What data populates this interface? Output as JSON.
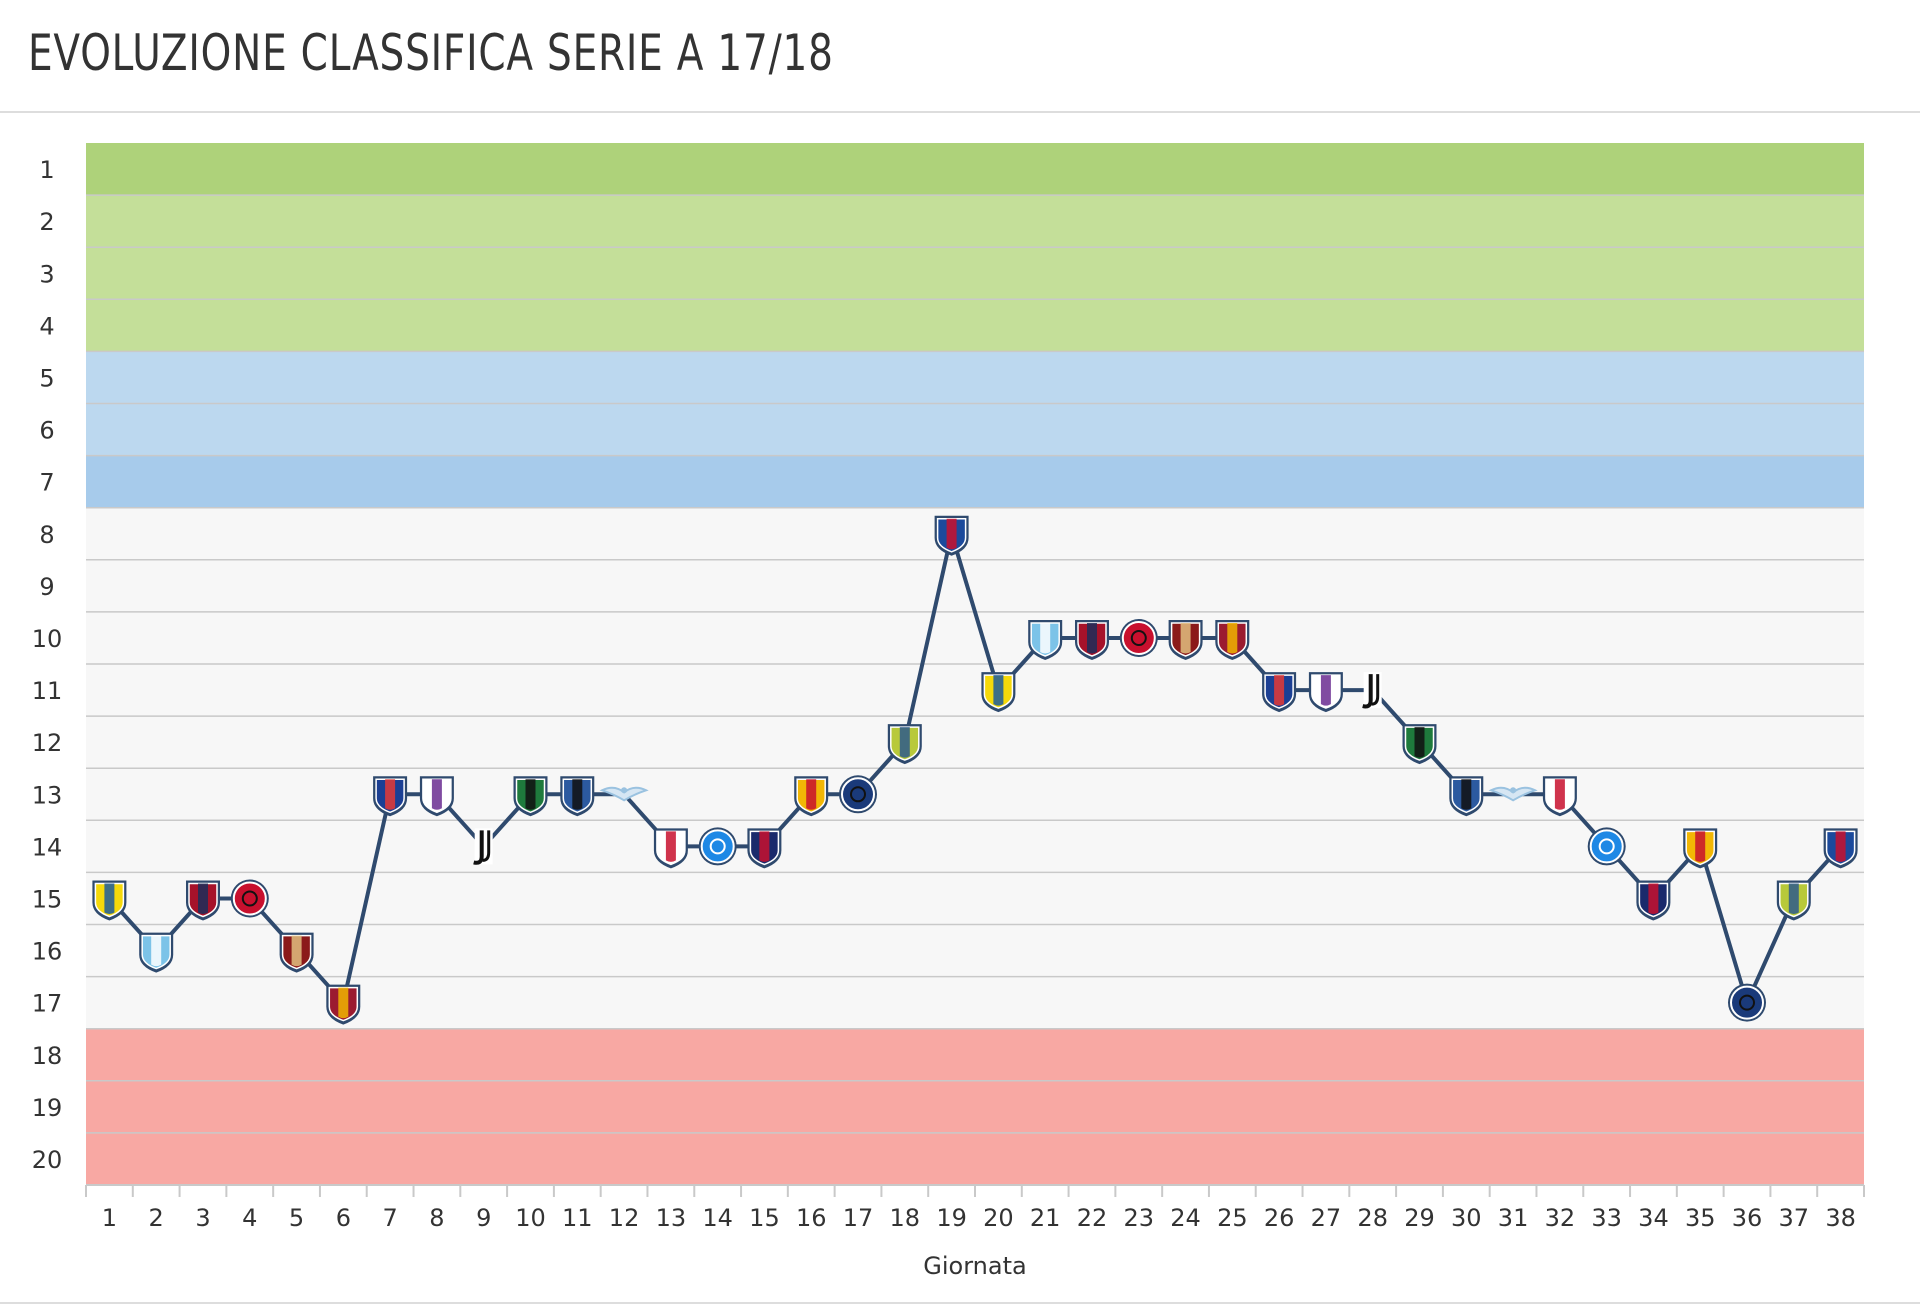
{
  "page": {
    "title": "EVOLUZIONE CLASSIFICA SERIE A 17/18"
  },
  "chart_data": {
    "type": "line",
    "title": "EVOLUZIONE CLASSIFICA SERIE A 17/18",
    "xlabel": "Giornata",
    "ylabel": "",
    "x": [
      1,
      2,
      3,
      4,
      5,
      6,
      7,
      8,
      9,
      10,
      11,
      12,
      13,
      14,
      15,
      16,
      17,
      18,
      19,
      20,
      21,
      22,
      23,
      24,
      25,
      26,
      27,
      28,
      29,
      30,
      31,
      32,
      33,
      34,
      35,
      36,
      37,
      38
    ],
    "ylim": [
      20,
      1
    ],
    "y_ticks": [
      1,
      2,
      3,
      4,
      5,
      6,
      7,
      8,
      9,
      10,
      11,
      12,
      13,
      14,
      15,
      16,
      17,
      18,
      19,
      20
    ],
    "zones": [
      {
        "from": 1,
        "to": 1,
        "color": "#aed27a"
      },
      {
        "from": 2,
        "to": 4,
        "color": "#c4df99"
      },
      {
        "from": 5,
        "to": 6,
        "color": "#bcd8ef"
      },
      {
        "from": 7,
        "to": 7,
        "color": "#a7cbeb"
      },
      {
        "from": 8,
        "to": 17,
        "color": "#f7f7f7"
      },
      {
        "from": 18,
        "to": 20,
        "color": "#f8a8a3"
      }
    ],
    "line_color": "#2f4a6e",
    "series": [
      {
        "values": [
          15,
          16,
          15,
          15,
          16,
          17,
          13,
          13,
          14,
          13,
          13,
          13,
          14,
          14,
          14,
          13,
          13,
          12,
          8,
          11,
          10,
          10,
          10,
          10,
          10,
          11,
          11,
          11,
          12,
          13,
          13,
          13,
          14,
          15,
          14,
          17,
          15,
          14
        ]
      }
    ],
    "opponent_markers": [
      {
        "shape": "shield",
        "fill": "#f5d90a",
        "accent": "#1c5a9c"
      },
      {
        "shape": "shield",
        "fill": "#7cc3e8",
        "accent": "#ffffff"
      },
      {
        "shape": "shield",
        "fill": "#a6122a",
        "accent": "#1c2e5a"
      },
      {
        "shape": "circle",
        "fill": "#c8102e",
        "accent": "#111111"
      },
      {
        "shape": "shield",
        "fill": "#8b1a1a",
        "accent": "#e0c080"
      },
      {
        "shape": "shield",
        "fill": "#9b1b30",
        "accent": "#f0b400"
      },
      {
        "shape": "shield",
        "fill": "#1b3f94",
        "accent": "#e53935"
      },
      {
        "shape": "shield",
        "fill": "#ffffff",
        "accent": "#6a2c91"
      },
      {
        "shape": "juve",
        "fill": "#ffffff",
        "accent": "#111111"
      },
      {
        "shape": "shield",
        "fill": "#1e7a3c",
        "accent": "#111111"
      },
      {
        "shape": "shield",
        "fill": "#2c5aa0",
        "accent": "#111111"
      },
      {
        "shape": "eagle",
        "fill": "#d6e6f3",
        "accent": "#9ac2e0"
      },
      {
        "shape": "shield",
        "fill": "#ffffff",
        "accent": "#c8102e"
      },
      {
        "shape": "circle",
        "fill": "#1e88e5",
        "accent": "#ffffff"
      },
      {
        "shape": "shield",
        "fill": "#1a2a6c",
        "accent": "#c8102e"
      },
      {
        "shape": "shield",
        "fill": "#f2b705",
        "accent": "#c8102e"
      },
      {
        "shape": "circle",
        "fill": "#1a3a7a",
        "accent": "#111111"
      },
      {
        "shape": "shield",
        "fill": "#b8c93a",
        "accent": "#2d5a8c"
      },
      {
        "shape": "shield",
        "fill": "#1b4a9c",
        "accent": "#c8102e"
      },
      {
        "shape": "shield",
        "fill": "#f5d90a",
        "accent": "#1c5a9c"
      },
      {
        "shape": "shield",
        "fill": "#7cc3e8",
        "accent": "#ffffff"
      },
      {
        "shape": "shield",
        "fill": "#a6122a",
        "accent": "#1c2e5a"
      },
      {
        "shape": "circle",
        "fill": "#c8102e",
        "accent": "#111111"
      },
      {
        "shape": "shield",
        "fill": "#8b1a1a",
        "accent": "#e0c080"
      },
      {
        "shape": "shield",
        "fill": "#9b1b30",
        "accent": "#f0b400"
      },
      {
        "shape": "shield",
        "fill": "#1b3f94",
        "accent": "#e53935"
      },
      {
        "shape": "shield",
        "fill": "#ffffff",
        "accent": "#6a2c91"
      },
      {
        "shape": "juve",
        "fill": "#ffffff",
        "accent": "#111111"
      },
      {
        "shape": "shield",
        "fill": "#1e7a3c",
        "accent": "#111111"
      },
      {
        "shape": "shield",
        "fill": "#2c5aa0",
        "accent": "#111111"
      },
      {
        "shape": "eagle",
        "fill": "#d6e6f3",
        "accent": "#9ac2e0"
      },
      {
        "shape": "shield",
        "fill": "#ffffff",
        "accent": "#c8102e"
      },
      {
        "shape": "circle",
        "fill": "#1e88e5",
        "accent": "#ffffff"
      },
      {
        "shape": "shield",
        "fill": "#1a2a6c",
        "accent": "#c8102e"
      },
      {
        "shape": "shield",
        "fill": "#f2b705",
        "accent": "#c8102e"
      },
      {
        "shape": "circle",
        "fill": "#1a3a7a",
        "accent": "#111111"
      },
      {
        "shape": "shield",
        "fill": "#b8c93a",
        "accent": "#2d5a8c"
      },
      {
        "shape": "shield",
        "fill": "#1b4a9c",
        "accent": "#c8102e"
      }
    ],
    "grid": true,
    "legend": "none"
  }
}
